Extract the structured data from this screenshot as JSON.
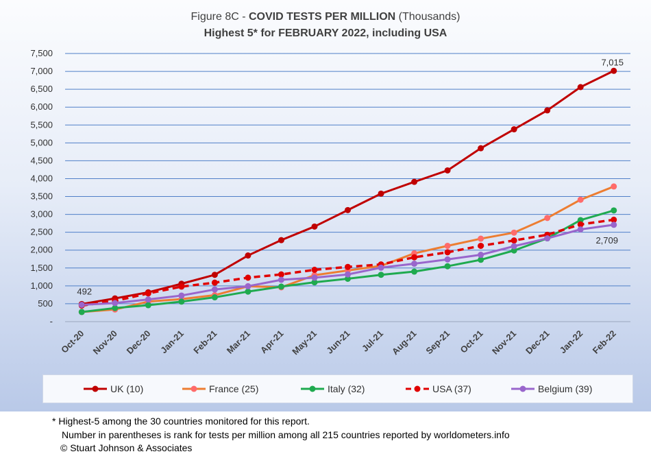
{
  "title": {
    "prefix": "Figure 8C - ",
    "bold": "COVID TESTS PER MILLION",
    "suffix": " (Thousands)",
    "line2": "Highest 5* for FEBRUARY 2022, including USA"
  },
  "footnotes": [
    "* Highest-5 among the 30 countries monitored for this report.",
    "Number in parentheses is rank for tests per million among all 215 countries reported by worldometers.info",
    "© Stuart Johnson & Associates"
  ],
  "chart_data": {
    "type": "line",
    "categories": [
      "Oct-20",
      "Nov-20",
      "Dec-20",
      "Jan-21",
      "Feb-21",
      "Mar-21",
      "Apr-21",
      "May-21",
      "Jun-21",
      "Jul-21",
      "Aug-21",
      "Sep-21",
      "Oct-21",
      "Nov-21",
      "Dec-21",
      "Jan-22",
      "Feb-22"
    ],
    "y_ticks": [
      "-",
      "500",
      "1,000",
      "1,500",
      "2,000",
      "2,500",
      "3,000",
      "3,500",
      "4,000",
      "4,500",
      "5,000",
      "5,500",
      "6,000",
      "6,500",
      "7,000",
      "7,500"
    ],
    "ylim": [
      0,
      7500
    ],
    "grid": true,
    "legend_position": "bottom",
    "series": [
      {
        "name": "UK (10)",
        "color": "#c00000",
        "dashed": false,
        "values": [
          492,
          650,
          820,
          1060,
          1310,
          1850,
          2280,
          2660,
          3120,
          3580,
          3910,
          4230,
          4850,
          5380,
          5910,
          6560,
          7015
        ]
      },
      {
        "name": "France (25)",
        "color": "#ed7d31",
        "marker": "#ff6b6b",
        "dashed": false,
        "values": [
          270,
          340,
          560,
          630,
          740,
          990,
          960,
          1300,
          1430,
          1560,
          1910,
          2120,
          2320,
          2490,
          2900,
          3410,
          3780
        ]
      },
      {
        "name": "Italy (32)",
        "color": "#1faa4f",
        "dashed": false,
        "values": [
          270,
          380,
          460,
          560,
          680,
          840,
          980,
          1100,
          1200,
          1310,
          1400,
          1550,
          1730,
          1990,
          2330,
          2840,
          3110
        ]
      },
      {
        "name": "USA (37)",
        "color": "#e00000",
        "dashed": true,
        "values": [
          450,
          580,
          790,
          980,
          1090,
          1230,
          1320,
          1450,
          1530,
          1600,
          1800,
          1940,
          2120,
          2270,
          2430,
          2720,
          2850
        ]
      },
      {
        "name": "Belgium (39)",
        "color": "#9966cc",
        "dashed": false,
        "values": [
          470,
          520,
          620,
          730,
          900,
          990,
          1170,
          1230,
          1320,
          1510,
          1620,
          1740,
          1870,
          2110,
          2330,
          2580,
          2709
        ]
      }
    ],
    "data_labels": [
      {
        "series": 0,
        "index": 0,
        "text": "492"
      },
      {
        "series": 0,
        "index": 16,
        "text": "7,015"
      },
      {
        "series": 4,
        "index": 16,
        "text": "2,709"
      }
    ]
  }
}
